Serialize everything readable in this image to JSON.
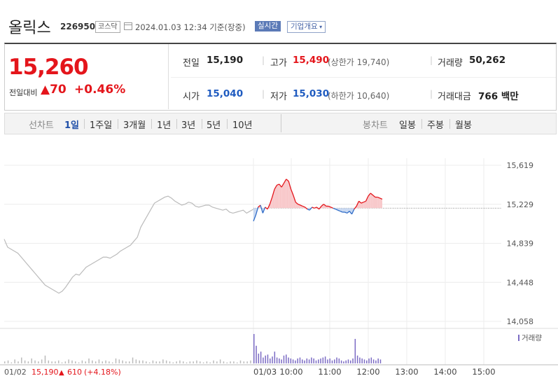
{
  "header": {
    "name": "올릭스",
    "code": "226950",
    "market_badge": "코스닥",
    "timestamp": "2024.01.03 12:34  기준(장중)",
    "realtime_label": "실시간",
    "company_button": "기업개요"
  },
  "price": {
    "current": "15,260",
    "change_label": "전일대비",
    "change_symbol": "▲",
    "change_value": "70",
    "change_pct": "+0.46%"
  },
  "info": {
    "prev_label": "전일",
    "prev_value": "15,190",
    "high_label": "고가",
    "high_value": "15,490",
    "upper_limit": "(상한가 19,740)",
    "volume_label": "거래량",
    "volume_value": "50,262",
    "open_label": "시가",
    "open_value": "15,040",
    "low_label": "저가",
    "low_value": "15,030",
    "lower_limit": "(하한가 10,640)",
    "amount_label": "거래대금",
    "amount_value": "766 백만"
  },
  "tabs": {
    "line_label": "선차트",
    "line_periods": [
      "1일",
      "1주일",
      "3개월",
      "1년",
      "3년",
      "5년",
      "10년"
    ],
    "active": "1일",
    "candle_label": "봉차트",
    "candle_periods": [
      "일봉",
      "주봉",
      "월봉"
    ]
  },
  "chart_data": {
    "type": "line",
    "y_ticks": [
      "15,619",
      "15,229",
      "14,839",
      "14,448",
      "14,058"
    ],
    "ylim": [
      14058,
      15619
    ],
    "reference_price": 15190,
    "volume_legend": "거래량",
    "prev_day_summary": {
      "date": "01/02",
      "close": "15,190",
      "symbol": "▲",
      "change": "610",
      "pct": "(+4.18%)"
    },
    "x_tick_labels": [
      "01/03",
      "10:00",
      "11:00",
      "12:00",
      "13:00",
      "14:00",
      "15:00"
    ],
    "colors": {
      "prev_day": "#bbbbbb",
      "up": "#e4151b",
      "up_fill": "#f8c9cb",
      "down": "#2f6cc8",
      "down_fill": "#c8d8f1",
      "volume": "#7b6bc4"
    },
    "series": [
      {
        "session": "01/02",
        "values": [
          14880,
          14800,
          14780,
          14760,
          14740,
          14700,
          14660,
          14620,
          14580,
          14540,
          14500,
          14460,
          14420,
          14400,
          14380,
          14360,
          14340,
          14360,
          14400,
          14450,
          14500,
          14530,
          14520,
          14560,
          14600,
          14620,
          14640,
          14660,
          14680,
          14700,
          14700,
          14690,
          14710,
          14730,
          14760,
          14780,
          14800,
          14820,
          14860,
          14900,
          15000,
          15060,
          15120,
          15180,
          15240,
          15260,
          15280,
          15300,
          15310,
          15290,
          15260,
          15240,
          15220,
          15230,
          15250,
          15240,
          15210,
          15200,
          15210,
          15220,
          15220,
          15200,
          15190,
          15180,
          15170,
          15180,
          15150,
          15140,
          15150,
          15160,
          15170,
          15140,
          15160,
          15180
        ]
      },
      {
        "session": "01/03",
        "values": [
          15060,
          15120,
          15200,
          15220,
          15140,
          15200,
          15180,
          15230,
          15300,
          15380,
          15420,
          15430,
          15400,
          15440,
          15480,
          15460,
          15380,
          15320,
          15250,
          15230,
          15220,
          15210,
          15200,
          15180,
          15170,
          15200,
          15190,
          15200,
          15180,
          15210,
          15230,
          15210,
          15210,
          15200,
          15190,
          15180,
          15170,
          15160,
          15150,
          15150,
          15140,
          15160,
          15130,
          15180,
          15210,
          15260,
          15240,
          15250,
          15260,
          15310,
          15340,
          15320,
          15300,
          15300,
          15290,
          15280
        ]
      }
    ],
    "volume": {
      "prev_day": [
        2,
        3,
        1,
        4,
        2,
        6,
        3,
        2,
        5,
        3,
        2,
        4,
        8,
        3,
        2,
        2,
        3,
        1,
        2,
        4,
        3,
        2,
        1,
        3,
        2,
        5,
        3,
        2,
        4,
        2,
        3,
        2,
        1,
        5,
        4,
        3,
        2,
        2,
        6,
        4,
        3,
        3,
        2,
        1,
        3,
        2,
        2,
        4,
        3,
        2,
        1,
        2,
        3,
        2,
        1,
        2,
        2,
        3,
        2,
        1,
        2,
        1,
        3,
        2,
        4,
        2,
        1,
        2,
        2,
        1,
        3,
        2,
        2,
        3
      ],
      "today": [
        30,
        18,
        10,
        12,
        6,
        8,
        9,
        5,
        7,
        12,
        6,
        5,
        4,
        8,
        9,
        6,
        5,
        4,
        3,
        5,
        6,
        4,
        3,
        5,
        4,
        6,
        5,
        3,
        4,
        5,
        6,
        7,
        4,
        5,
        3,
        4,
        6,
        5,
        3,
        2,
        3,
        4,
        3,
        5,
        25,
        8,
        6,
        5,
        4,
        3,
        5,
        6,
        4,
        3,
        5,
        4
      ]
    }
  }
}
